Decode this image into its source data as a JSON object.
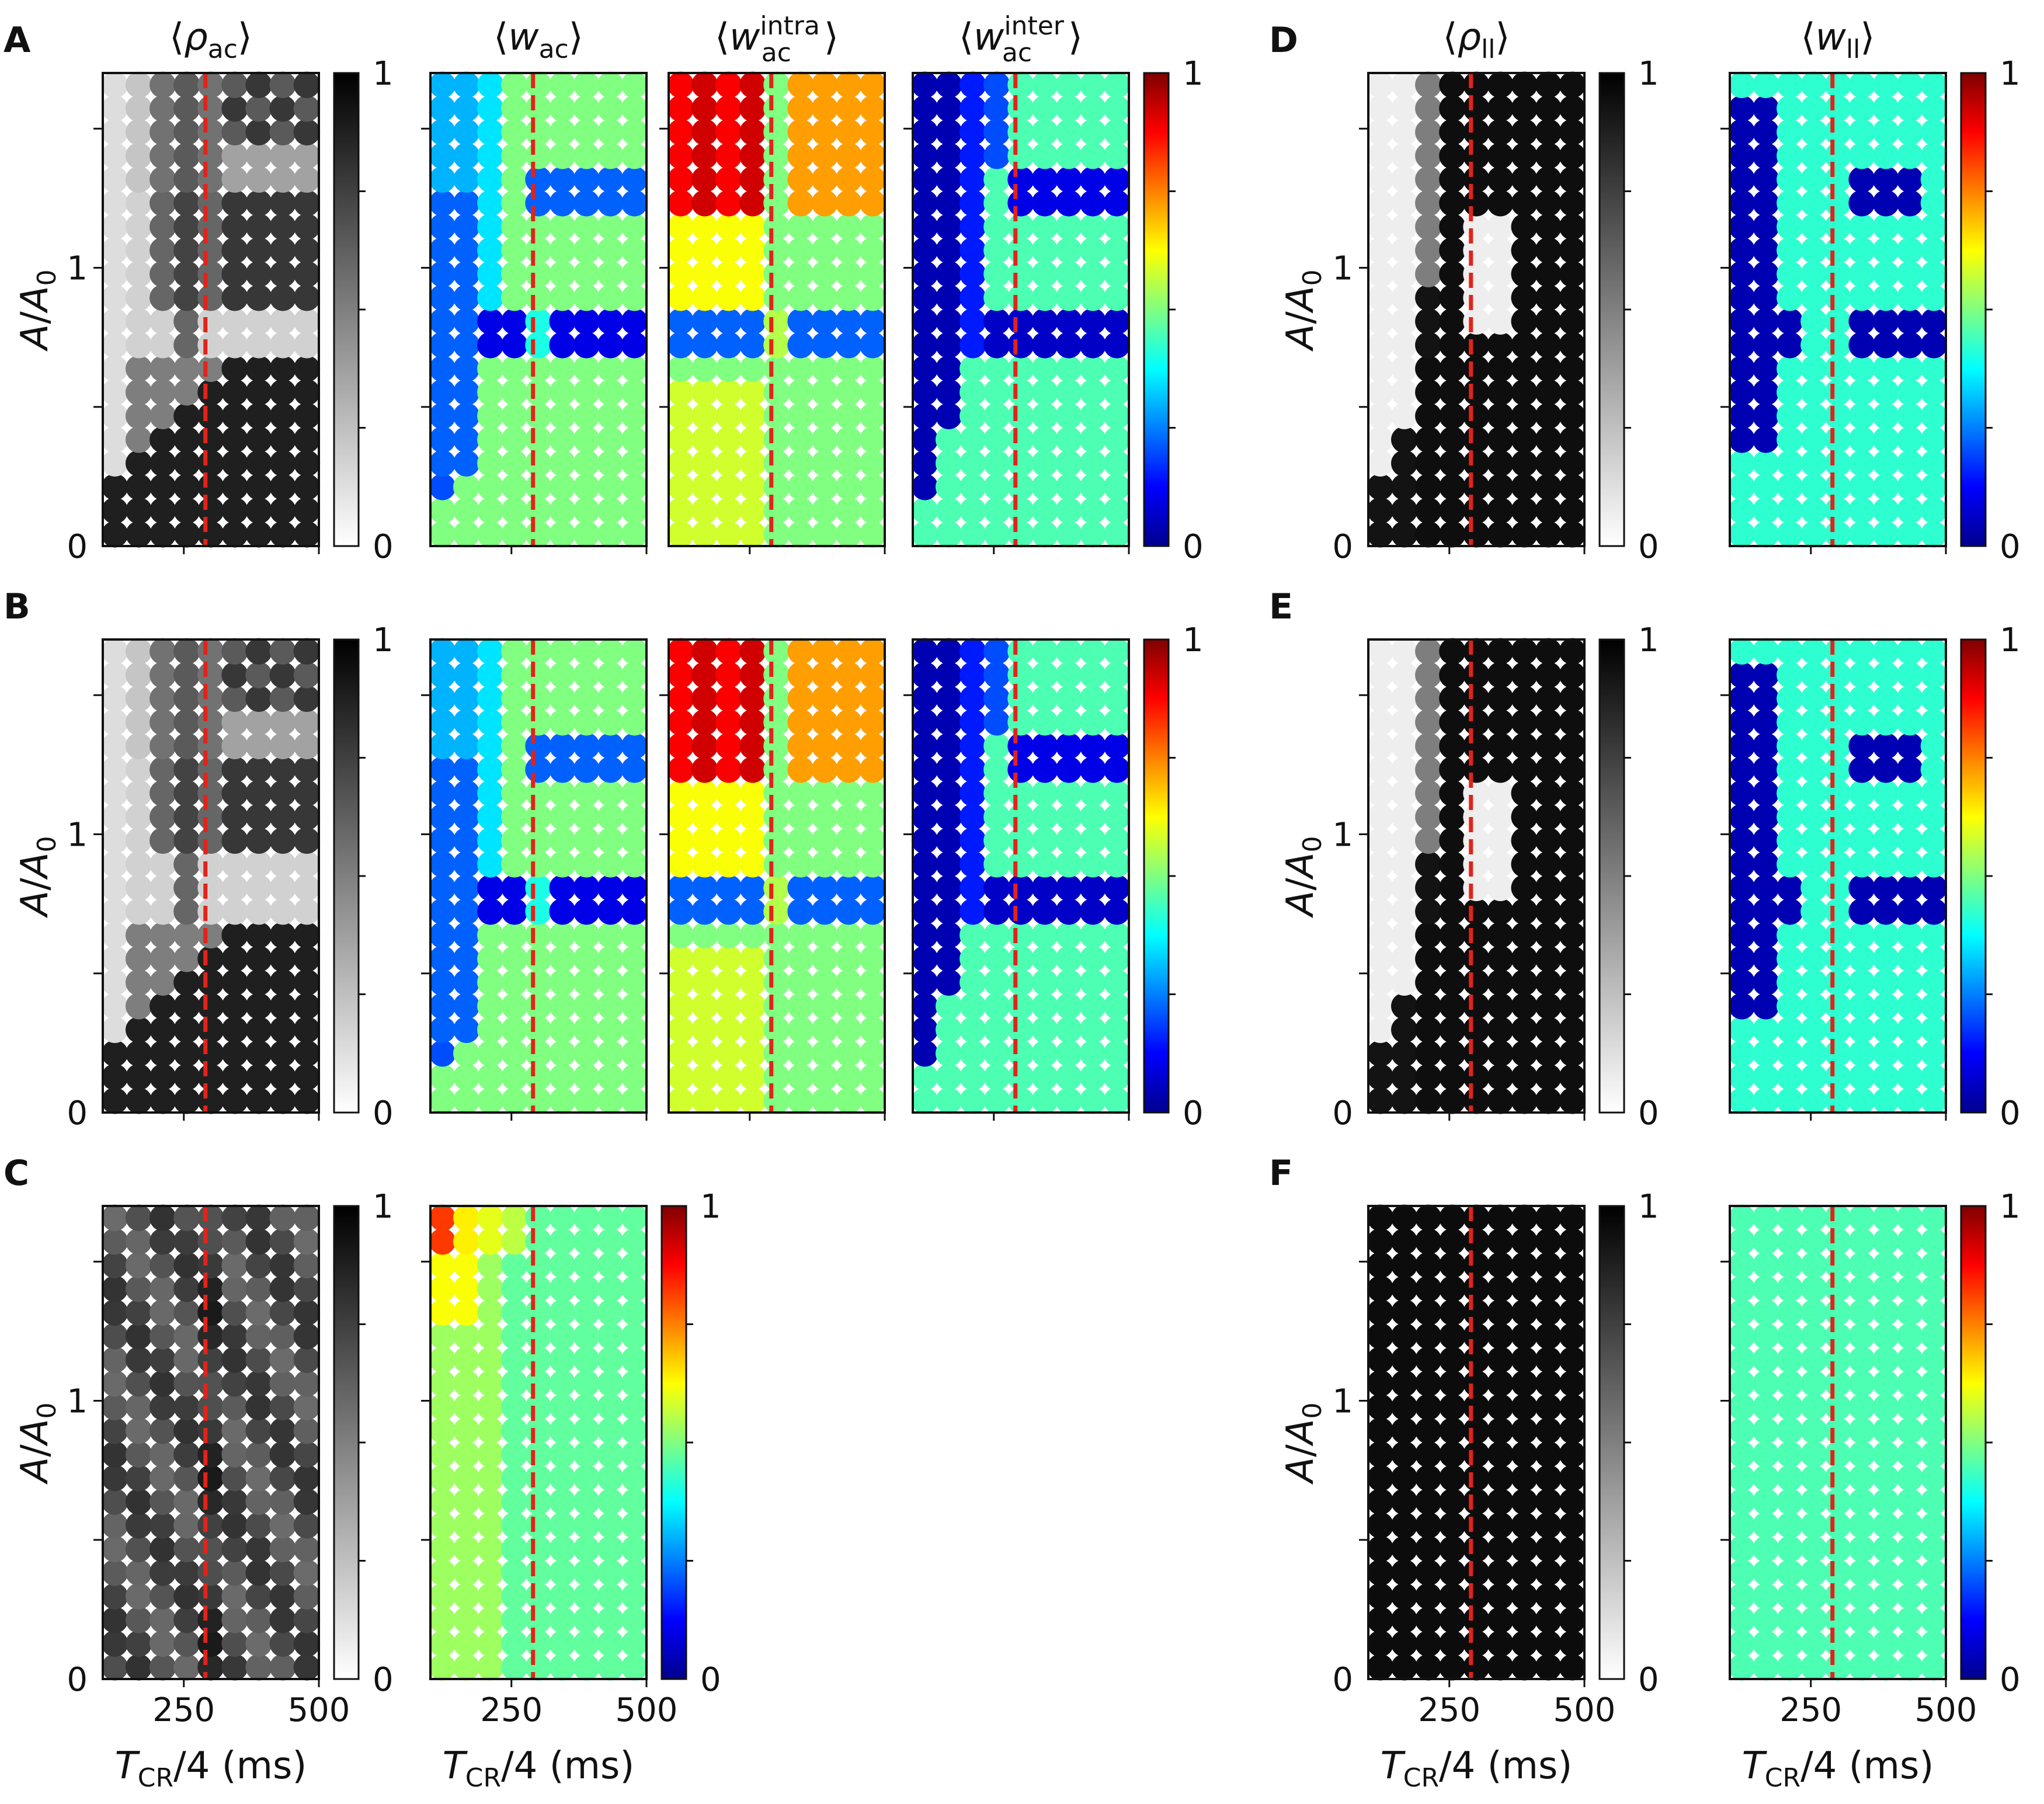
{
  "figure": {
    "titles": {
      "rho_ac": "⟨ρac⟩",
      "w_ac": "⟨wac⟩",
      "w_ac_intra": "⟨wacintra⟩",
      "w_ac_inter": "⟨wacinter⟩",
      "rho_ll": "⟨ρll⟩",
      "w_ll": "⟨wll⟩"
    },
    "title_parts": {
      "rho": "ρ",
      "w": "w",
      "ac": "ac",
      "ll": "ll",
      "intra": "intra",
      "inter": "inter",
      "open": "⟨",
      "close": "⟩"
    },
    "panel_labels": [
      "A",
      "B",
      "C",
      "D",
      "E",
      "F"
    ],
    "ylabel": {
      "A": "A",
      "slash": "/",
      "A0": "A",
      "sub0": "0"
    },
    "xlabel": {
      "T": "T",
      "sub": "CR",
      "rest": "/4 (ms)"
    },
    "y_ticks": [
      "0",
      "1"
    ],
    "x_ticks": [
      "250",
      "500"
    ],
    "colorbar_ticks": [
      "0",
      "1"
    ],
    "colors": {
      "marker_line": "#e2231a",
      "jet": [
        "#00008f",
        "#0000ff",
        "#0080ff",
        "#00ffff",
        "#80ff80",
        "#ffff00",
        "#ff8000",
        "#ff0000",
        "#800000"
      ]
    }
  },
  "chart_data": [
    {
      "panel": "A",
      "type": "scatter",
      "title": "⟨ρac⟩",
      "colormap": "gray_r",
      "xlabel": "",
      "ylabel": "A/A0",
      "x_ticks": [],
      "y_ticks": [
        0,
        1
      ],
      "clim": [
        0,
        1
      ],
      "x_range": [
        100,
        500
      ],
      "y_range": [
        0,
        1.7
      ],
      "critical_x": 290
    },
    {
      "panel": "A",
      "type": "scatter",
      "title": "⟨wac⟩",
      "colormap": "jet",
      "clim": [
        0,
        1
      ],
      "critical_x": 290
    },
    {
      "panel": "A",
      "type": "scatter",
      "title": "⟨wacintra⟩",
      "colormap": "jet",
      "clim": [
        0,
        1
      ],
      "critical_x": 290
    },
    {
      "panel": "A",
      "type": "scatter",
      "title": "⟨wacinter⟩",
      "colormap": "jet",
      "clim": [
        0,
        1
      ],
      "critical_x": 290
    },
    {
      "panel": "B",
      "type": "scatter",
      "title": "⟨ρac⟩",
      "colormap": "gray_r",
      "ylabel": "A/A0",
      "clim": [
        0,
        1
      ],
      "critical_x": 290
    },
    {
      "panel": "B",
      "type": "scatter",
      "title": "⟨wac⟩",
      "colormap": "jet",
      "clim": [
        0,
        1
      ],
      "critical_x": 290
    },
    {
      "panel": "B",
      "type": "scatter",
      "title": "⟨wacintra⟩",
      "colormap": "jet",
      "clim": [
        0,
        1
      ],
      "critical_x": 290
    },
    {
      "panel": "B",
      "type": "scatter",
      "title": "⟨wacinter⟩",
      "colormap": "jet",
      "clim": [
        0,
        1
      ],
      "critical_x": 290
    },
    {
      "panel": "C",
      "type": "scatter",
      "title": "⟨ρac⟩",
      "colormap": "gray_r",
      "xlabel": "TCR/4 (ms)",
      "ylabel": "A/A0",
      "x_ticks": [
        250,
        500
      ],
      "clim": [
        0,
        1
      ],
      "critical_x": 290
    },
    {
      "panel": "C",
      "type": "scatter",
      "title": "⟨wac⟩",
      "colormap": "jet",
      "xlabel": "TCR/4 (ms)",
      "x_ticks": [
        250,
        500
      ],
      "clim": [
        0,
        1
      ],
      "critical_x": 290
    },
    {
      "panel": "D",
      "type": "scatter",
      "title": "⟨ρll⟩",
      "colormap": "gray_r",
      "ylabel": "A/A0",
      "clim": [
        0,
        1
      ],
      "critical_x": 290
    },
    {
      "panel": "D",
      "type": "scatter",
      "title": "⟨wll⟩",
      "colormap": "jet",
      "clim": [
        0,
        1
      ],
      "critical_x": 290
    },
    {
      "panel": "E",
      "type": "scatter",
      "title": "⟨ρll⟩",
      "colormap": "gray_r",
      "ylabel": "A/A0",
      "clim": [
        0,
        1
      ],
      "critical_x": 290
    },
    {
      "panel": "E",
      "type": "scatter",
      "title": "⟨wll⟩",
      "colormap": "jet",
      "clim": [
        0,
        1
      ],
      "critical_x": 290
    },
    {
      "panel": "F",
      "type": "scatter",
      "title": "⟨ρll⟩",
      "colormap": "gray_r",
      "xlabel": "TCR/4 (ms)",
      "ylabel": "A/A0",
      "x_ticks": [
        250,
        500
      ],
      "clim": [
        0,
        1
      ],
      "critical_x": 290
    },
    {
      "panel": "F",
      "type": "scatter",
      "title": "⟨wll⟩",
      "colormap": "jet",
      "xlabel": "TCR/4 (ms)",
      "x_ticks": [
        250,
        500
      ],
      "clim": [
        0,
        1
      ],
      "critical_x": 290
    }
  ]
}
